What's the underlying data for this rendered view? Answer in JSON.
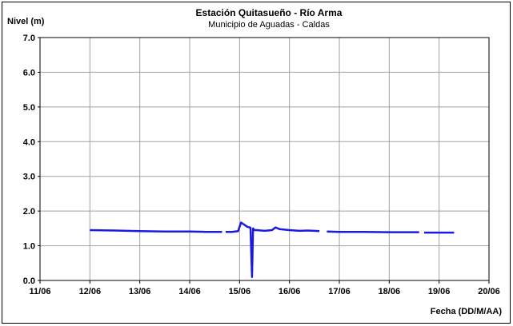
{
  "chart_data": {
    "type": "line",
    "title": "Estación Quitasueño -  Río Arma",
    "subtitle": "Municipio de Aguadas - Caldas",
    "ylabel": "Nivel (m)",
    "xlabel": "Fecha (DD/M/AA)",
    "ylim": [
      0,
      7
    ],
    "xlim": [
      11,
      20
    ],
    "y_ticks": [
      0,
      1,
      2,
      3,
      4,
      5,
      6,
      7
    ],
    "y_tick_labels": [
      "0.0",
      "1.0",
      "2.0",
      "3.0",
      "4.0",
      "5.0",
      "6.0",
      "7.0"
    ],
    "x_ticks": [
      11,
      12,
      13,
      14,
      15,
      16,
      17,
      18,
      19,
      20
    ],
    "x_tick_labels": [
      "11/06",
      "12/06",
      "13/06",
      "14/06",
      "15/06",
      "16/06",
      "17/06",
      "18/06",
      "19/06",
      "20/06"
    ],
    "grid": true,
    "line_color": "#1a1ae6",
    "series": [
      {
        "segments": [
          {
            "x": [
              12.0,
              12.5,
              13.0,
              13.5,
              14.0,
              14.3,
              14.65
            ],
            "y": [
              1.45,
              1.44,
              1.42,
              1.41,
              1.41,
              1.4,
              1.4
            ]
          },
          {
            "x": [
              14.72,
              14.85,
              14.97,
              15.03,
              15.08,
              15.15,
              15.22,
              15.25,
              15.27,
              15.3,
              15.35,
              15.5,
              15.65,
              15.72,
              15.8,
              16.0,
              16.2,
              16.35,
              16.5,
              16.6
            ],
            "y": [
              1.4,
              1.4,
              1.42,
              1.67,
              1.62,
              1.55,
              1.52,
              0.1,
              1.5,
              1.45,
              1.45,
              1.43,
              1.45,
              1.53,
              1.48,
              1.45,
              1.43,
              1.44,
              1.43,
              1.42
            ]
          },
          {
            "x": [
              16.75,
              17.0,
              17.5,
              18.0,
              18.3,
              18.6
            ],
            "y": [
              1.41,
              1.4,
              1.4,
              1.39,
              1.39,
              1.39
            ]
          },
          {
            "x": [
              18.7,
              19.0,
              19.3
            ],
            "y": [
              1.38,
              1.38,
              1.38
            ]
          }
        ]
      }
    ]
  }
}
